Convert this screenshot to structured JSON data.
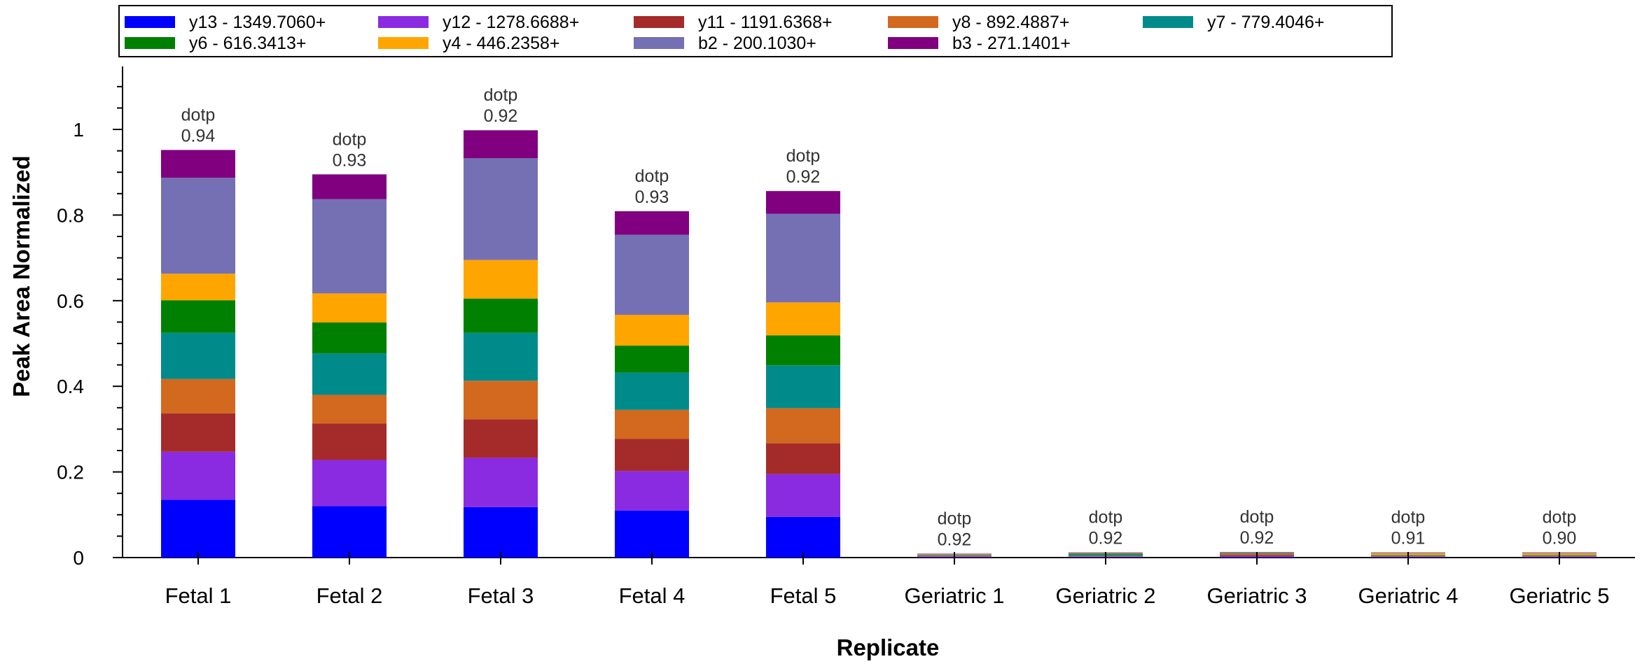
{
  "chart_data": {
    "type": "bar",
    "stacked": true,
    "xlabel": "Replicate",
    "ylabel": "Peak Area Normalized",
    "ylim": [
      0,
      1.1
    ],
    "yticks": [
      0,
      0.2,
      0.4,
      0.6,
      0.8,
      1
    ],
    "ytick_labels": [
      "0",
      "0.2",
      "0.4",
      "0.6",
      "0.8",
      "1"
    ],
    "grid": false,
    "legend_position": "top",
    "categories": [
      "Fetal 1",
      "Fetal 2",
      "Fetal 3",
      "Fetal 4",
      "Fetal 5",
      "Geriatric 1",
      "Geriatric 2",
      "Geriatric 3",
      "Geriatric 4",
      "Geriatric 5"
    ],
    "annotation_label": "dotp",
    "annotations": [
      "0.94",
      "0.93",
      "0.92",
      "0.93",
      "0.92",
      "0.92",
      "0.92",
      "0.92",
      "0.91",
      "0.90"
    ],
    "series": [
      {
        "name": "y13 - 1349.7060+",
        "color": "#0000ff",
        "values": [
          0.135,
          0.12,
          0.118,
          0.11,
          0.095,
          0.001,
          0.001,
          0.001,
          0.001,
          0.001
        ]
      },
      {
        "name": "y12 - 1278.6688+",
        "color": "#8a2be2",
        "values": [
          0.112,
          0.108,
          0.115,
          0.092,
          0.1,
          0.001,
          0.001,
          0.002,
          0.001,
          0.001
        ]
      },
      {
        "name": "y11 - 1191.6368+",
        "color": "#a52a2a",
        "values": [
          0.09,
          0.085,
          0.09,
          0.075,
          0.072,
          0.001,
          0.001,
          0.003,
          0.001,
          0.001
        ]
      },
      {
        "name": "y8 - 892.4887+",
        "color": "#d2691e",
        "values": [
          0.08,
          0.067,
          0.09,
          0.068,
          0.082,
          0.001,
          0.001,
          0.002,
          0.001,
          0.001
        ]
      },
      {
        "name": "y7 - 779.4046+",
        "color": "#008b8b",
        "values": [
          0.108,
          0.097,
          0.112,
          0.087,
          0.1,
          0.001,
          0.003,
          0.001,
          0.001,
          0.001
        ]
      },
      {
        "name": "y6 - 616.3413+",
        "color": "#008000",
        "values": [
          0.076,
          0.072,
          0.08,
          0.063,
          0.07,
          0.001,
          0.002,
          0.001,
          0.001,
          0.001
        ]
      },
      {
        "name": "y4 - 446.2358+",
        "color": "#ffa500",
        "values": [
          0.062,
          0.068,
          0.09,
          0.072,
          0.077,
          0.001,
          0.001,
          0.001,
          0.004,
          0.004
        ]
      },
      {
        "name": "b2 - 200.1030+",
        "color": "#7570b3",
        "values": [
          0.224,
          0.22,
          0.238,
          0.187,
          0.207,
          0.001,
          0.001,
          0.001,
          0.001,
          0.001
        ]
      },
      {
        "name": "b3 - 271.1401+",
        "color": "#800080",
        "values": [
          0.065,
          0.058,
          0.065,
          0.055,
          0.053,
          0.001,
          0.001,
          0.001,
          0.001,
          0.001
        ]
      }
    ]
  }
}
